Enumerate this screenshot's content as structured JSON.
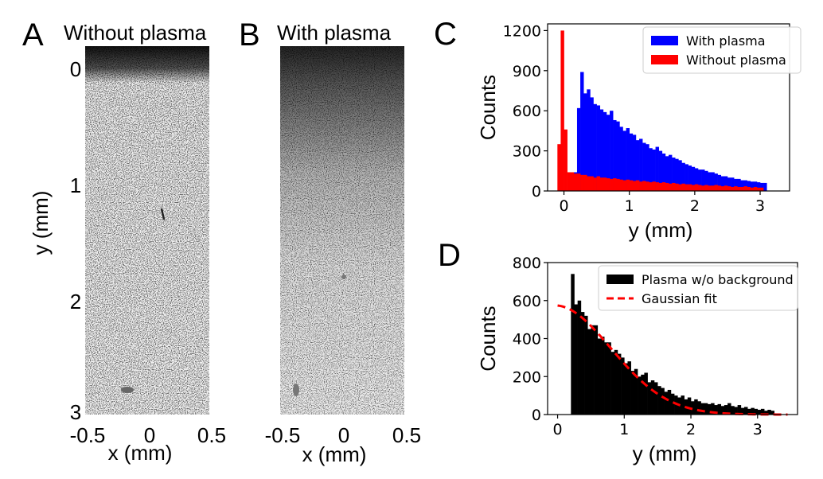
{
  "panels": {
    "A": {
      "letter": "A",
      "title": "Without plasma"
    },
    "B": {
      "letter": "B",
      "title": "With plasma"
    },
    "C": {
      "letter": "C"
    },
    "D": {
      "letter": "D"
    }
  },
  "images": {
    "ylabel": "y (mm)",
    "y_ticks": [
      "0",
      "1",
      "2",
      "3"
    ],
    "x_ticks": [
      "-0.5",
      "0",
      "0.5"
    ],
    "xlabel": "x (mm)"
  },
  "chart_data": [
    {
      "id": "C",
      "type": "bar",
      "subtype": "histogram",
      "xlabel": "y (mm)",
      "ylabel": "Counts",
      "xlim": [
        -0.25,
        3.45
      ],
      "ylim": [
        0,
        1250
      ],
      "xticks": [
        0,
        1,
        2,
        3
      ],
      "xtick_labels": [
        "0",
        "1",
        "2",
        "3"
      ],
      "yticks": [
        0,
        300,
        600,
        900,
        1200
      ],
      "ytick_labels": [
        "0",
        "300",
        "600",
        "900",
        "1200"
      ],
      "legend_position": "top-right",
      "bin_width": 0.05,
      "series": [
        {
          "name": "With plasma",
          "color": "#0000ff",
          "x_start": 0.15,
          "values": [
            140,
            620,
            890,
            730,
            760,
            700,
            650,
            640,
            610,
            590,
            570,
            600,
            530,
            520,
            480,
            450,
            470,
            430,
            420,
            380,
            390,
            360,
            350,
            320,
            310,
            330,
            300,
            280,
            260,
            270,
            250,
            240,
            230,
            210,
            200,
            190,
            180,
            170,
            160,
            160,
            150,
            140,
            140,
            130,
            120,
            110,
            110,
            100,
            100,
            90,
            90,
            80,
            80,
            75,
            70,
            70,
            65,
            60,
            60
          ]
        },
        {
          "name": "Without plasma",
          "color": "#ff0000",
          "x_start": -0.1,
          "values": [
            350,
            1200,
            460,
            140,
            140,
            130,
            130,
            120,
            120,
            110,
            110,
            100,
            110,
            100,
            100,
            95,
            90,
            95,
            90,
            85,
            80,
            85,
            80,
            75,
            80,
            70,
            75,
            70,
            65,
            70,
            65,
            60,
            65,
            60,
            55,
            60,
            55,
            50,
            55,
            50,
            50,
            45,
            50,
            45,
            40,
            45,
            40,
            40,
            45,
            40,
            35,
            40,
            35,
            30,
            35,
            30,
            30,
            35,
            30,
            25,
            30,
            25,
            25
          ]
        }
      ]
    },
    {
      "id": "D",
      "type": "bar",
      "subtype": "histogram",
      "xlabel": "y (mm)",
      "ylabel": "Counts",
      "xlim": [
        -0.15,
        3.6
      ],
      "ylim": [
        0,
        800
      ],
      "xticks": [
        0,
        1,
        2,
        3
      ],
      "xtick_labels": [
        "0",
        "1",
        "2",
        "3"
      ],
      "yticks": [
        0,
        200,
        400,
        600,
        800
      ],
      "ytick_labels": [
        "0",
        "200",
        "400",
        "600",
        "800"
      ],
      "legend_position": "top-right",
      "bin_width": 0.05,
      "series": [
        {
          "name": "Plasma w/o background",
          "color": "#000000",
          "x_start": 0.2,
          "values": [
            740,
            580,
            600,
            540,
            520,
            450,
            470,
            470,
            400,
            410,
            380,
            380,
            330,
            340,
            320,
            300,
            270,
            280,
            230,
            240,
            200,
            210,
            220,
            170,
            180,
            170,
            150,
            140,
            120,
            130,
            110,
            100,
            90,
            100,
            80,
            90,
            70,
            80,
            70,
            60,
            60,
            55,
            60,
            50,
            55,
            45,
            50,
            60,
            45,
            40,
            50,
            35,
            40,
            30,
            35,
            30,
            25,
            30,
            20,
            25,
            20,
            0
          ]
        },
        {
          "name": "Gaussian fit",
          "color": "#ff0000",
          "style": "dashed",
          "function": "gaussian",
          "amplitude": 575,
          "center": -0.05,
          "sigma": 0.85,
          "x_range": [
            0,
            3.45
          ]
        }
      ]
    }
  ]
}
